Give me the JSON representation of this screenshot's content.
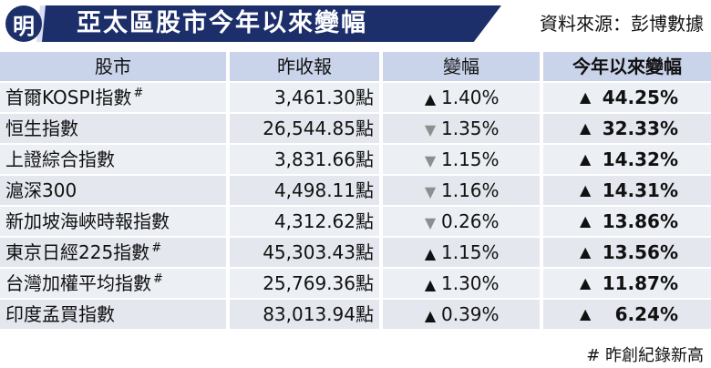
{
  "header": {
    "logo": "明",
    "title": "亞太區股市今年以來變幅",
    "source": "資料來源：彭博數據"
  },
  "columns": {
    "name": "股市",
    "close": "昨收報",
    "change": "變幅",
    "ytd": "今年以來變幅"
  },
  "rows": [
    {
      "name": "首爾KOSPI指數",
      "mark": "#",
      "close": "3,461.30點",
      "change_dir": "up",
      "change": "1.40%",
      "ytd": "44.25%"
    },
    {
      "name": "恒生指數",
      "mark": "",
      "close": "26,544.85點",
      "change_dir": "down",
      "change": "1.35%",
      "ytd": "32.33%"
    },
    {
      "name": "上證綜合指數",
      "mark": "",
      "close": "3,831.66點",
      "change_dir": "down",
      "change": "1.15%",
      "ytd": "14.32%"
    },
    {
      "name": "滬深300",
      "mark": "",
      "close": "4,498.11點",
      "change_dir": "down",
      "change": "1.16%",
      "ytd": "14.31%"
    },
    {
      "name": "新加坡海峽時報指數",
      "mark": "",
      "close": "4,312.62點",
      "change_dir": "down",
      "change": "0.26%",
      "ytd": "13.86%"
    },
    {
      "name": "東京日經225指數",
      "mark": "#",
      "close": "45,303.43點",
      "change_dir": "up",
      "change": "1.15%",
      "ytd": "13.56%"
    },
    {
      "name": "台灣加權平均指數",
      "mark": "#",
      "close": "25,769.36點",
      "change_dir": "up",
      "change": "1.30%",
      "ytd": "11.87%"
    },
    {
      "name": "印度孟買指數",
      "mark": "",
      "close": "83,013.94點",
      "change_dir": "up",
      "change": "0.39%",
      "ytd": "6.24%"
    }
  ],
  "footnote": "# 昨創紀錄新高",
  "colors": {
    "brand": "#1c2f6b",
    "header_cell": "#c9d3ea",
    "row_cell": "#eceff4",
    "down_marker": "#8e8e8e"
  }
}
